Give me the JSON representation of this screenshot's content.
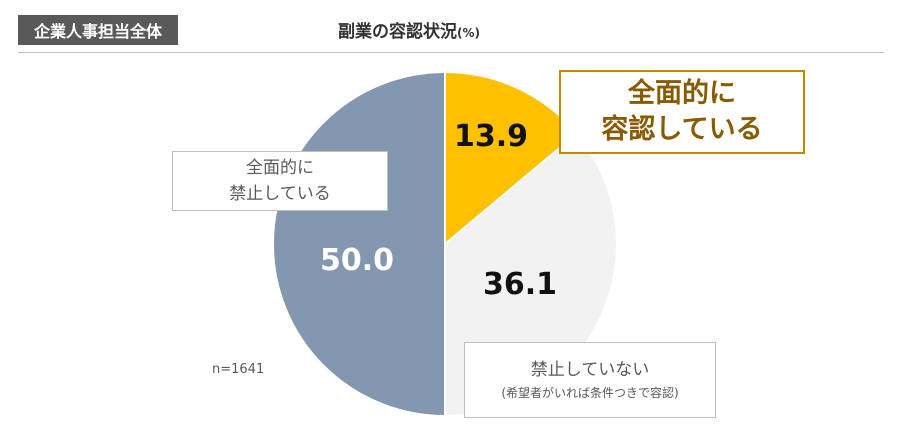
{
  "header": {
    "tag": "企業人事担当全体",
    "title": "副業の容認状況",
    "title_unit": "(%)"
  },
  "sample_note": "n=1641",
  "chart_data": {
    "type": "pie",
    "start_angle_deg": 0,
    "direction": "clockwise",
    "slices": [
      {
        "name": "全面的に容認している",
        "value": 13.9,
        "color": "#ffc000"
      },
      {
        "name": "禁止していない(希望者がいれば条件つきで容認)",
        "value": 36.1,
        "color": "#f2f2f2"
      },
      {
        "name": "全面的に禁止している",
        "value": 50.0,
        "color": "#8497b0"
      }
    ],
    "value_labels": [
      "13.9",
      "36.1",
      "50.0"
    ]
  },
  "callouts": {
    "allow": {
      "line1": "全面的に",
      "line2": "容認している"
    },
    "prohibit": {
      "line1": "全面的に",
      "line2": "禁止している"
    },
    "conditional": {
      "line1": "禁止していない",
      "line2": "(希望者がいれば条件つきで容認)"
    }
  }
}
